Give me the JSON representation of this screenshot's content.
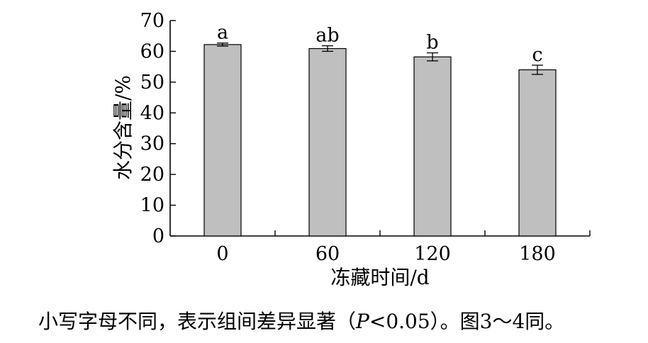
{
  "chart_data": {
    "type": "bar",
    "categories": [
      "0",
      "60",
      "120",
      "180"
    ],
    "values": [
      62.2,
      60.9,
      58.2,
      54.0
    ],
    "errors": [
      0.5,
      0.9,
      1.3,
      1.5
    ],
    "significance_letters": [
      "a",
      "ab",
      "b",
      "c"
    ],
    "title": "",
    "xlabel": "冻藏时间/d",
    "ylabel": "水分含量/%",
    "ylim": [
      0,
      70
    ],
    "yticks": [
      "0",
      "10",
      "20",
      "30",
      "40",
      "50",
      "60",
      "70"
    ],
    "grid": false,
    "bar_color": "#bfbfbf"
  },
  "footnote": {
    "before": "小写字母不同，表示组间差异显著（",
    "italic": "P",
    "after": "<0.05）。图3～4同。"
  }
}
